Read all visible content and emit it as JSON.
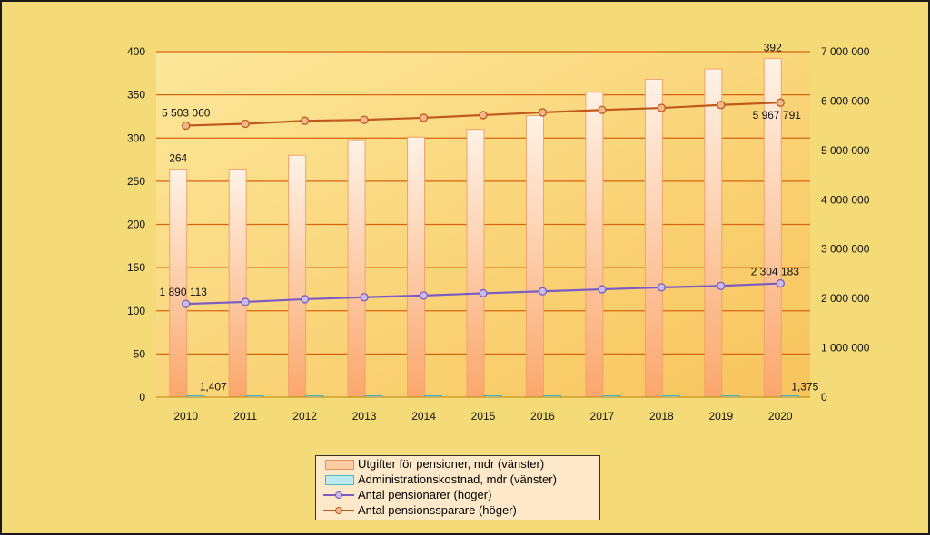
{
  "chart_data": {
    "type": "bar",
    "categories": [
      "2010",
      "2011",
      "2012",
      "2013",
      "2014",
      "2015",
      "2016",
      "2017",
      "2018",
      "2019",
      "2020"
    ],
    "y_left": {
      "ticks": [
        "0",
        "50",
        "100",
        "150",
        "200",
        "250",
        "300",
        "350",
        "400"
      ],
      "ylim": [
        0,
        400
      ]
    },
    "y_right": {
      "ticks": [
        "0",
        "1 000 000",
        "2 000 000",
        "3 000 000",
        "4 000 000",
        "5 000 000",
        "6 000 000",
        "7 000 000"
      ],
      "ylim": [
        0,
        7000000
      ]
    },
    "series": [
      {
        "name": "Utgifter för pensioner, mdr (vänster)",
        "type": "bar",
        "axis": "left",
        "values": [
          264,
          264,
          280,
          298,
          301,
          310,
          326,
          353,
          368,
          380,
          392
        ],
        "color": "#fbcba4"
      },
      {
        "name": "Administrationskostnad, mdr (vänster)",
        "type": "bar",
        "axis": "left",
        "values": [
          1.407,
          1.4,
          1.4,
          1.4,
          1.4,
          1.4,
          1.4,
          1.4,
          1.4,
          1.38,
          1.375
        ],
        "color": "#bfe9f2"
      },
      {
        "name": "Antal pensionärer (höger)",
        "type": "line",
        "axis": "right",
        "values": [
          1890113,
          1930000,
          1985000,
          2025000,
          2060000,
          2105000,
          2145000,
          2185000,
          2225000,
          2255000,
          2304183
        ],
        "color": "#7b5cc0"
      },
      {
        "name": "Antal pensionssparare (höger)",
        "type": "line",
        "axis": "right",
        "values": [
          5503060,
          5540000,
          5600000,
          5620000,
          5660000,
          5715000,
          5770000,
          5820000,
          5860000,
          5920000,
          5967791
        ],
        "color": "#c0591e"
      }
    ],
    "data_labels": [
      {
        "series": 0,
        "index": 0,
        "text": "264"
      },
      {
        "series": 0,
        "index": 10,
        "text": "392"
      },
      {
        "series": 1,
        "index": 0,
        "text": "1,407"
      },
      {
        "series": 1,
        "index": 10,
        "text": "1,375"
      },
      {
        "series": 2,
        "index": 0,
        "text": "1 890 113"
      },
      {
        "series": 2,
        "index": 10,
        "text": "2 304 183"
      },
      {
        "series": 3,
        "index": 0,
        "text": "5 503 060"
      },
      {
        "series": 3,
        "index": 10,
        "text": "5 967 791"
      }
    ],
    "legend_position": "bottom",
    "grid": true
  }
}
